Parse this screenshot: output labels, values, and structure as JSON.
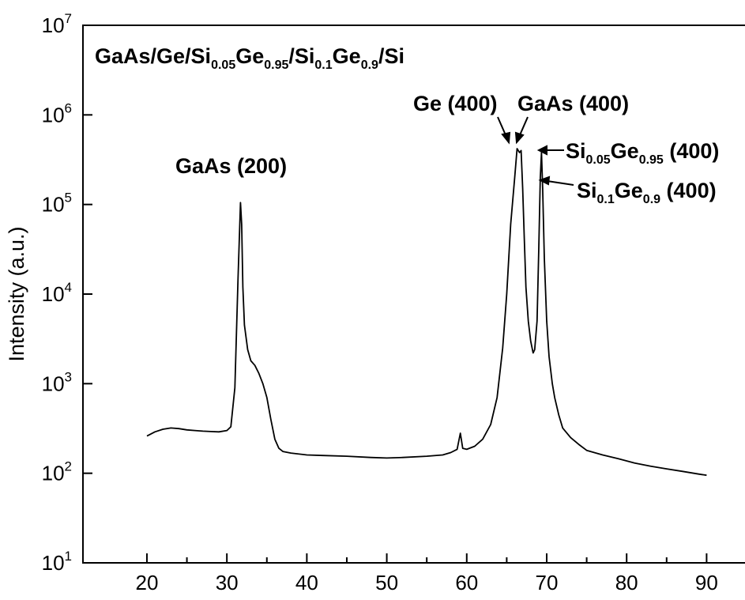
{
  "chart_data": {
    "type": "line",
    "title": "GaAs/Ge/Si0.05Ge0.95/Si0.1Ge0.9/Si",
    "title_parts": [
      {
        "text": "GaAs/Ge/Si",
        "sub": false
      },
      {
        "text": "0.05",
        "sub": true
      },
      {
        "text": "Ge",
        "sub": false
      },
      {
        "text": "0.95",
        "sub": true
      },
      {
        "text": "/Si",
        "sub": false
      },
      {
        "text": "0.1",
        "sub": true
      },
      {
        "text": "Ge",
        "sub": false
      },
      {
        "text": "0.9",
        "sub": true
      },
      {
        "text": "/Si",
        "sub": false
      }
    ],
    "xlabel": "",
    "ylabel": "Intensity (a.u.)",
    "xlim": [
      12,
      95
    ],
    "ylim": [
      10,
      10000000
    ],
    "yscale": "log",
    "xticks": [
      {
        "value": 20,
        "label": "20"
      },
      {
        "value": 30,
        "label": "30"
      },
      {
        "value": 40,
        "label": "40"
      },
      {
        "value": 50,
        "label": "50"
      },
      {
        "value": 60,
        "label": "60"
      },
      {
        "value": 70,
        "label": "70"
      },
      {
        "value": 80,
        "label": "80"
      },
      {
        "value": 90,
        "label": "90"
      }
    ],
    "yticks": [
      {
        "value": 10,
        "base": "10",
        "exp": "1"
      },
      {
        "value": 100,
        "base": "10",
        "exp": "2"
      },
      {
        "value": 1000,
        "base": "10",
        "exp": "3"
      },
      {
        "value": 10000,
        "base": "10",
        "exp": "4"
      },
      {
        "value": 100000,
        "base": "10",
        "exp": "5"
      },
      {
        "value": 1000000,
        "base": "10",
        "exp": "6"
      },
      {
        "value": 10000000,
        "base": "10",
        "exp": "7"
      }
    ],
    "grid": false,
    "line_color": "#000000",
    "series": [
      {
        "x": [
          20,
          21,
          22,
          23,
          24,
          25,
          26,
          27,
          28,
          29,
          30,
          30.5,
          31,
          31.4,
          31.7,
          31.85,
          32,
          32.2,
          32.6,
          33,
          33.5,
          34,
          34.5,
          35,
          35.5,
          36,
          36.5,
          37,
          38,
          40,
          42,
          45,
          48,
          50,
          52,
          55,
          57,
          58,
          58.8,
          59.2,
          59.5,
          60,
          61,
          62,
          63,
          63.8,
          64.5,
          65,
          65.5,
          66,
          66.3,
          66.6,
          66.8,
          67,
          67.2,
          67.4,
          67.7,
          68,
          68.3,
          68.5,
          68.8,
          69,
          69.2,
          69.35,
          69.5,
          69.7,
          70,
          70.3,
          70.7,
          71,
          71.5,
          72,
          73,
          74,
          75,
          77,
          79,
          81,
          83,
          85,
          87,
          89,
          90
        ],
        "y": [
          260,
          290,
          310,
          320,
          315,
          305,
          300,
          295,
          292,
          290,
          300,
          330,
          900,
          15000,
          105000,
          60000,
          12000,
          4500,
          2400,
          1800,
          1600,
          1300,
          1000,
          700,
          400,
          240,
          190,
          175,
          168,
          160,
          158,
          155,
          150,
          148,
          150,
          155,
          160,
          170,
          185,
          280,
          190,
          185,
          200,
          240,
          350,
          700,
          2500,
          10000,
          60000,
          200000,
          420000,
          380000,
          400000,
          150000,
          40000,
          12000,
          5000,
          3000,
          2200,
          2400,
          5000,
          30000,
          200000,
          380000,
          150000,
          25000,
          5000,
          2000,
          1000,
          700,
          450,
          320,
          250,
          210,
          180,
          160,
          145,
          130,
          120,
          112,
          105,
          98,
          95
        ]
      }
    ],
    "annotations": [
      {
        "parts": [
          {
            "text": "GaAs (200)",
            "sub": false
          }
        ]
      },
      {
        "parts": [
          {
            "text": "Ge (400)",
            "sub": false
          }
        ]
      },
      {
        "parts": [
          {
            "text": "GaAs (400)",
            "sub": false
          }
        ]
      },
      {
        "parts": [
          {
            "text": "Si",
            "sub": false
          },
          {
            "text": "0.05",
            "sub": true
          },
          {
            "text": "Ge",
            "sub": false
          },
          {
            "text": "0.95",
            "sub": true
          },
          {
            "text": " (400)",
            "sub": false
          }
        ]
      },
      {
        "parts": [
          {
            "text": "Si",
            "sub": false
          },
          {
            "text": "0.1",
            "sub": true
          },
          {
            "text": "Ge",
            "sub": false
          },
          {
            "text": "0.9",
            "sub": true
          },
          {
            "text": " (400)",
            "sub": false
          }
        ]
      }
    ]
  }
}
